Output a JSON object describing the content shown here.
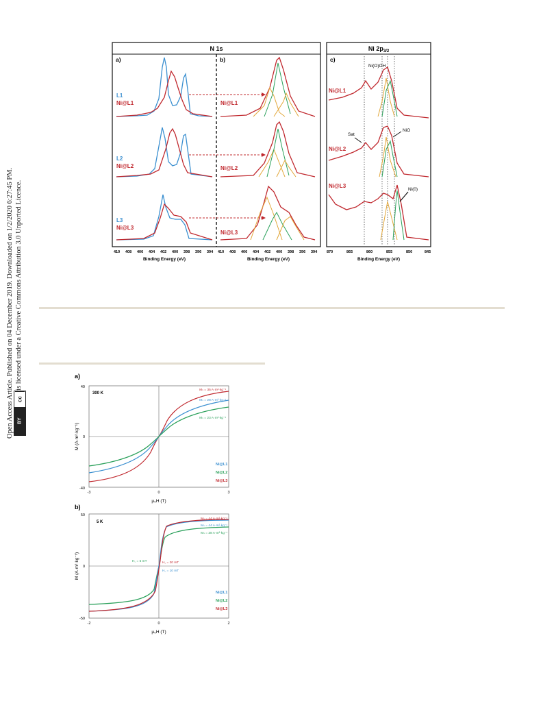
{
  "sidebar": {
    "line1": "Open Access Article. Published on 04 December 2019. Downloaded on 1/2/2020 6:27:45 PM.",
    "line2": "This article is licensed under a Creative Commons Attribution 3.0 Unported Licence.",
    "badge_cc": "cc",
    "badge_by": "BY"
  },
  "figure_top": {
    "header_n1s": "N 1s",
    "header_ni2p": "Ni 2p",
    "header_ni2p_sub": "3/2",
    "panel_a": "a)",
    "panel_b": "b)",
    "panel_c": "c)",
    "labels_a": [
      {
        "top": "L1",
        "bottom": "Ni@L1"
      },
      {
        "top": "L2",
        "bottom": "Ni@L2"
      },
      {
        "top": "L3",
        "bottom": "Ni@L3"
      }
    ],
    "labels_b": [
      "Ni@L1",
      "Ni@L2",
      "Ni@L3"
    ],
    "labels_c": [
      "Ni@L1",
      "Ni@L2",
      "Ni@L3"
    ],
    "annotations_c": {
      "nioh": "Ni(O)OH",
      "sat": "Sat",
      "nio": "NiO",
      "ni0": "Ni(0)"
    },
    "xticks_n1s": [
      "410",
      "408",
      "406",
      "404",
      "402",
      "400",
      "398",
      "396",
      "394"
    ],
    "xticks_ni": [
      "870",
      "865",
      "860",
      "855",
      "850",
      "845"
    ],
    "xlabel": "Binding Energy (eV)"
  },
  "figure_bottom": {
    "panel_a": "a)",
    "panel_b": "b)",
    "temp_a": "300 K",
    "temp_b": "5 K",
    "ylabel": "M (A·m²·kg⁻¹)",
    "xlabel": "μ₀H (T)",
    "a_yticks": [
      "40",
      "0",
      "-40"
    ],
    "a_xticks": [
      "-3",
      "0",
      "3"
    ],
    "b_yticks": [
      "50",
      "0",
      "-50"
    ],
    "b_xticks": [
      "-2",
      "0",
      "2"
    ],
    "ms_a": [
      "Mₛ = 35 A·m²·kg⁻¹",
      "Mₛ = 28 A·m²·kg⁻¹",
      "Mₛ = 23 A·m²·kg⁻¹"
    ],
    "ms_b": [
      "Mₛ = 44 A·m²·kg⁻¹",
      "Mₛ = 44 A·m²·kg⁻¹",
      "Mₛ = 38 A·m²·kg⁻¹"
    ],
    "hc_b": [
      "H꜀ = 5 mT",
      "H꜀ = 20 mT",
      "H꜀ = 10 mT"
    ],
    "legend": [
      "Ni@L1",
      "Ni@L2",
      "Ni@L3"
    ]
  },
  "colors": {
    "blue": "#3a8fd0",
    "red": "#c0282e",
    "green": "#2aa05a",
    "orange": "#e2a73a",
    "gray": "#7a7a7a"
  }
}
